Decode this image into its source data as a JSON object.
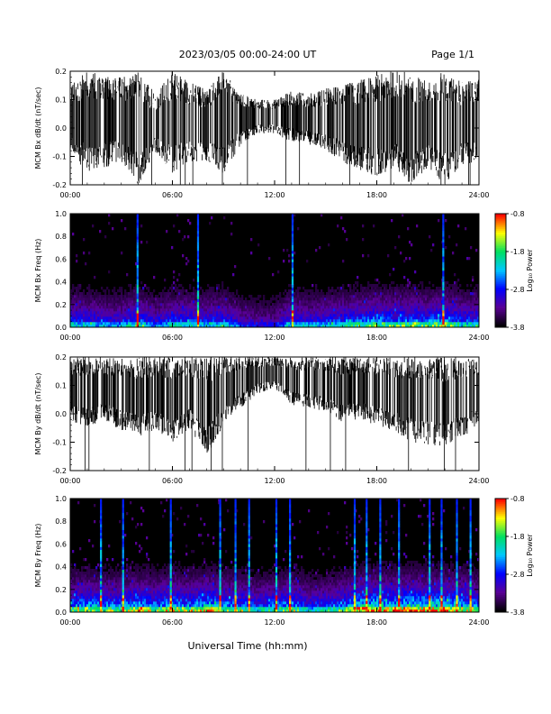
{
  "header": {
    "title": "2023/03/05  00:00-24:00 UT",
    "page": "Page 1/1"
  },
  "xaxis": {
    "label": "Universal Time (hh:mm)",
    "ticks": [
      "00:00",
      "06:00",
      "12:00",
      "18:00",
      "24:00"
    ],
    "range_hours": [
      0,
      24
    ]
  },
  "colorbar": {
    "label": "Log₁₀ Power",
    "ticks": [
      "-0.8",
      "-1.8",
      "-2.8",
      "-3.8"
    ],
    "range": [
      -3.8,
      -0.8
    ],
    "colors": [
      "#000000",
      "#5a0096",
      "#0000ff",
      "#00c8ff",
      "#00e060",
      "#ffff00",
      "#ff0000"
    ]
  },
  "chart_data": [
    {
      "type": "line",
      "ylabel": "MCM Bx dB/dt (nT/sec)",
      "ylim": [
        -0.2,
        0.2
      ],
      "yticks": [
        "0.2",
        "0.1",
        "0.0",
        "-0.1",
        "-0.2"
      ],
      "x_range_hours": [
        0,
        24
      ],
      "series": [
        {
          "color": "#000000",
          "x": [
            0,
            1,
            2,
            3,
            4,
            5,
            6,
            7,
            8,
            9,
            10,
            11,
            12,
            13,
            14,
            15,
            16,
            17,
            18,
            19,
            20,
            21,
            22,
            23,
            24
          ],
          "upper": [
            0.15,
            0.2,
            0.19,
            0.18,
            0.2,
            0.12,
            0.2,
            0.16,
            0.14,
            0.2,
            0.12,
            0.1,
            0.1,
            0.13,
            0.12,
            0.14,
            0.15,
            0.17,
            0.19,
            0.2,
            0.2,
            0.17,
            0.2,
            0.16,
            0.17
          ],
          "lower": [
            -0.08,
            -0.16,
            -0.14,
            -0.12,
            -0.2,
            -0.09,
            -0.16,
            -0.12,
            -0.12,
            -0.16,
            -0.06,
            -0.02,
            -0.02,
            -0.05,
            -0.06,
            -0.08,
            -0.12,
            -0.15,
            -0.17,
            -0.14,
            -0.2,
            -0.14,
            -0.2,
            -0.13,
            -0.12
          ]
        }
      ]
    },
    {
      "type": "heatmap",
      "ylabel": "MCM Bx Freq (Hz)",
      "ylim": [
        0.0,
        1.0
      ],
      "yticks": [
        "1.0",
        "0.8",
        "0.6",
        "0.4",
        "0.2",
        "0.0"
      ],
      "x_range_hours": [
        0,
        24
      ],
      "value": "log10 power",
      "value_range": [
        -3.8,
        -0.8
      ],
      "vertical_bursts_hours": [
        3.95,
        7.5,
        13.05,
        21.9
      ],
      "activity": [
        0.5,
        0.45,
        0.4,
        0.4,
        0.55,
        0.35,
        0.5,
        0.5,
        0.45,
        0.5,
        0.3,
        0.25,
        0.25,
        0.5,
        0.4,
        0.45,
        0.5,
        0.55,
        0.6,
        0.55,
        0.6,
        0.55,
        0.65,
        0.5,
        0.5
      ]
    },
    {
      "type": "line",
      "ylabel": "MCM By dB/dt (nT/sec)",
      "ylim": [
        -0.2,
        0.2
      ],
      "yticks": [
        "0.2",
        "0.1",
        "0.0",
        "-0.1",
        "-0.2"
      ],
      "x_range_hours": [
        0,
        24
      ],
      "series": [
        {
          "color": "#000000",
          "x": [
            0,
            1,
            2,
            3,
            4,
            5,
            6,
            7,
            8,
            9,
            10,
            11,
            12,
            13,
            14,
            15,
            16,
            17,
            18,
            19,
            20,
            21,
            22,
            23,
            24
          ],
          "upper": [
            0.2,
            0.2,
            0.2,
            0.2,
            0.2,
            0.2,
            0.2,
            0.2,
            0.2,
            0.2,
            0.2,
            0.2,
            0.2,
            0.2,
            0.2,
            0.2,
            0.2,
            0.2,
            0.2,
            0.2,
            0.2,
            0.2,
            0.2,
            0.2,
            0.2
          ],
          "lower": [
            -0.03,
            -0.05,
            -0.02,
            -0.06,
            -0.08,
            -0.06,
            -0.1,
            -0.05,
            -0.15,
            -0.04,
            0.02,
            0.07,
            0.09,
            0.03,
            0.02,
            0.01,
            -0.03,
            -0.02,
            -0.04,
            -0.06,
            -0.1,
            -0.11,
            -0.12,
            -0.08,
            -0.05
          ]
        }
      ]
    },
    {
      "type": "heatmap",
      "ylabel": "MCM By Freq (Hz)",
      "ylim": [
        0.0,
        1.0
      ],
      "yticks": [
        "1.0",
        "0.8",
        "0.6",
        "0.4",
        "0.2",
        "0.0"
      ],
      "x_range_hours": [
        0,
        24
      ],
      "value": "log10 power",
      "value_range": [
        -3.8,
        -0.8
      ],
      "vertical_bursts_hours": [
        1.8,
        3.1,
        5.9,
        8.8,
        9.7,
        10.5,
        12.1,
        12.9,
        16.7,
        17.4,
        18.2,
        19.3,
        21.1,
        21.8,
        22.7,
        23.5
      ],
      "activity": [
        0.6,
        0.65,
        0.6,
        0.6,
        0.7,
        0.6,
        0.7,
        0.6,
        0.75,
        0.65,
        0.55,
        0.5,
        0.55,
        0.65,
        0.45,
        0.5,
        0.6,
        0.75,
        0.8,
        0.75,
        0.8,
        0.75,
        0.8,
        0.7,
        0.65
      ]
    }
  ]
}
